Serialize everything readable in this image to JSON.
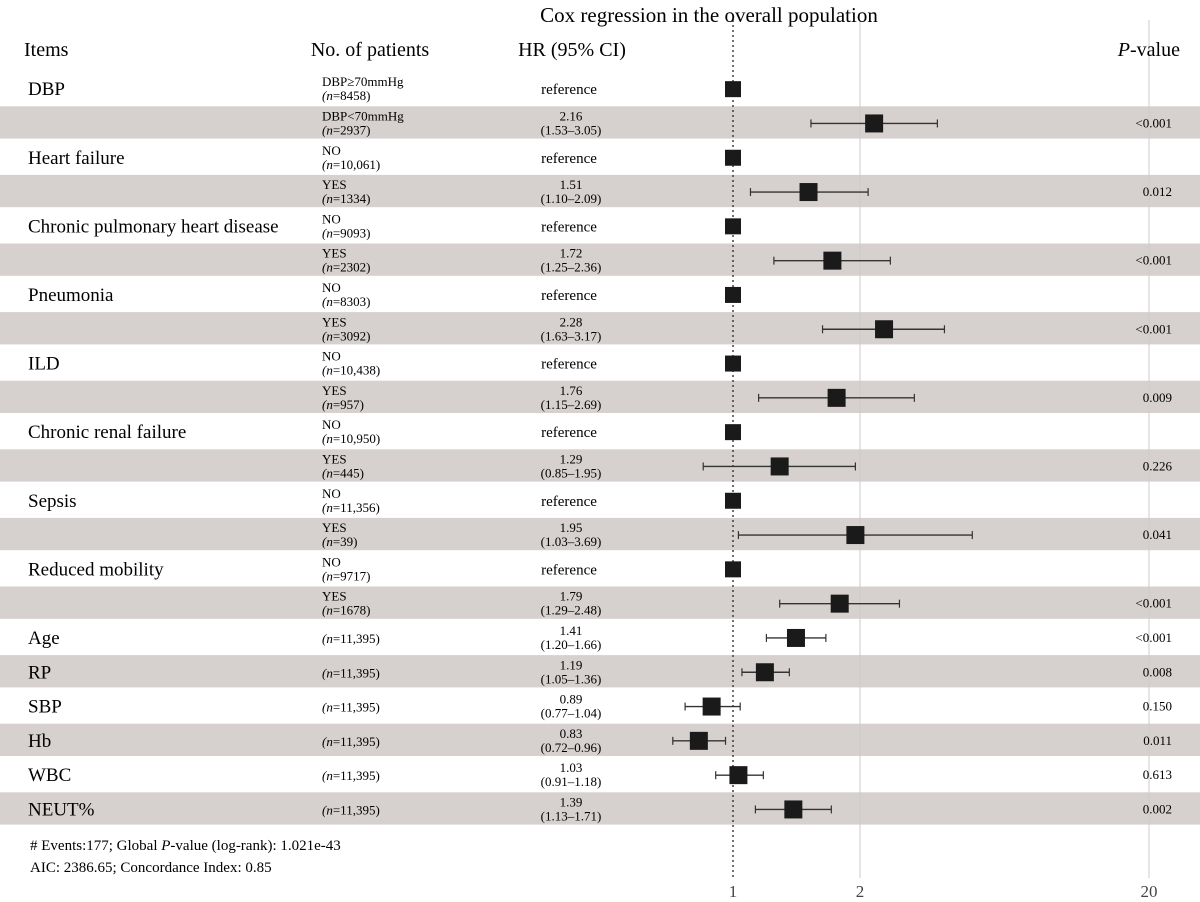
{
  "chart_data": {
    "type": "forest",
    "title": "Cox regression in the overall population",
    "columns": {
      "items": "Items",
      "patients": "No. of patients",
      "hr": "HR (95% CI)",
      "pvalue_italic": "P",
      "pvalue_rest": "-value"
    },
    "reference_label": "reference",
    "x_scale": "log",
    "x_ticks": [
      {
        "value": 1,
        "label": "1"
      },
      {
        "value": 2,
        "label": "2"
      },
      {
        "value": 20,
        "label": "20"
      }
    ],
    "rows": [
      {
        "item": "DBP",
        "group": "DBP≥70mmHg",
        "n_value": "8458",
        "hr": null,
        "hr_text": "",
        "ci_text": "",
        "lo": null,
        "hi": null,
        "p": "",
        "shade": false
      },
      {
        "item": "",
        "group": "DBP<70mmHg",
        "n_value": "2937",
        "hr": 2.16,
        "hr_text": "2.16",
        "ci_text": "(1.53–3.05)",
        "lo": 1.53,
        "hi": 3.05,
        "p": "<0.001",
        "shade": true
      },
      {
        "item": "Heart failure",
        "group": "NO",
        "n_value": "10,061",
        "hr": null,
        "hr_text": "",
        "ci_text": "",
        "lo": null,
        "hi": null,
        "p": "",
        "shade": false
      },
      {
        "item": "",
        "group": "YES",
        "n_value": "1334",
        "hr": 1.51,
        "hr_text": "1.51",
        "ci_text": "(1.10–2.09)",
        "lo": 1.1,
        "hi": 2.09,
        "p": "0.012",
        "shade": true
      },
      {
        "item": "Chronic pulmonary heart disease",
        "group": "NO",
        "n_value": "9093",
        "hr": null,
        "hr_text": "",
        "ci_text": "",
        "lo": null,
        "hi": null,
        "p": "",
        "shade": false
      },
      {
        "item": "",
        "group": "YES",
        "n_value": "2302",
        "hr": 1.72,
        "hr_text": "1.72",
        "ci_text": "(1.25–2.36)",
        "lo": 1.25,
        "hi": 2.36,
        "p": "<0.001",
        "shade": true
      },
      {
        "item": "Pneumonia",
        "group": "NO",
        "n_value": "8303",
        "hr": null,
        "hr_text": "",
        "ci_text": "",
        "lo": null,
        "hi": null,
        "p": "",
        "shade": false
      },
      {
        "item": "",
        "group": "YES",
        "n_value": "3092",
        "hr": 2.28,
        "hr_text": "2.28",
        "ci_text": "(1.63–3.17)",
        "lo": 1.63,
        "hi": 3.17,
        "p": "<0.001",
        "shade": true
      },
      {
        "item": "ILD",
        "group": "NO",
        "n_value": "10,438",
        "hr": null,
        "hr_text": "",
        "ci_text": "",
        "lo": null,
        "hi": null,
        "p": "",
        "shade": false
      },
      {
        "item": "",
        "group": "YES",
        "n_value": "957",
        "hr": 1.76,
        "hr_text": "1.76",
        "ci_text": "(1.15–2.69)",
        "lo": 1.15,
        "hi": 2.69,
        "p": "0.009",
        "shade": true
      },
      {
        "item": "Chronic renal failure",
        "group": "NO",
        "n_value": "10,950",
        "hr": null,
        "hr_text": "",
        "ci_text": "",
        "lo": null,
        "hi": null,
        "p": "",
        "shade": false
      },
      {
        "item": "",
        "group": "YES",
        "n_value": "445",
        "hr": 1.29,
        "hr_text": "1.29",
        "ci_text": "(0.85–1.95)",
        "lo": 0.85,
        "hi": 1.95,
        "p": "0.226",
        "shade": true
      },
      {
        "item": "Sepsis",
        "group": "NO",
        "n_value": "11,356",
        "hr": null,
        "hr_text": "",
        "ci_text": "",
        "lo": null,
        "hi": null,
        "p": "",
        "shade": false
      },
      {
        "item": "",
        "group": "YES",
        "n_value": "39",
        "hr": 1.95,
        "hr_text": "1.95",
        "ci_text": "(1.03–3.69)",
        "lo": 1.03,
        "hi": 3.69,
        "p": "0.041",
        "shade": true
      },
      {
        "item": "Reduced mobility",
        "group": "NO",
        "n_value": "9717",
        "hr": null,
        "hr_text": "",
        "ci_text": "",
        "lo": null,
        "hi": null,
        "p": "",
        "shade": false
      },
      {
        "item": "",
        "group": "YES",
        "n_value": "1678",
        "hr": 1.79,
        "hr_text": "1.79",
        "ci_text": "(1.29–2.48)",
        "lo": 1.29,
        "hi": 2.48,
        "p": "<0.001",
        "shade": true
      },
      {
        "item": "Age",
        "group": "",
        "n_value": "11,395",
        "hr": 1.41,
        "hr_text": "1.41",
        "ci_text": "(1.20–1.66)",
        "lo": 1.2,
        "hi": 1.66,
        "p": "<0.001",
        "shade": false
      },
      {
        "item": "RP",
        "group": "",
        "n_value": "11,395",
        "hr": 1.19,
        "hr_text": "1.19",
        "ci_text": "(1.05–1.36)",
        "lo": 1.05,
        "hi": 1.36,
        "p": "0.008",
        "shade": true
      },
      {
        "item": "SBP",
        "group": "",
        "n_value": "11,395",
        "hr": 0.89,
        "hr_text": "0.89",
        "ci_text": "(0.77–1.04)",
        "lo": 0.77,
        "hi": 1.04,
        "p": "0.150",
        "shade": false
      },
      {
        "item": "Hb",
        "group": "",
        "n_value": "11,395",
        "hr": 0.83,
        "hr_text": "0.83",
        "ci_text": "(0.72–0.96)",
        "lo": 0.72,
        "hi": 0.96,
        "p": "0.011",
        "shade": true
      },
      {
        "item": "WBC",
        "group": "",
        "n_value": "11,395",
        "hr": 1.03,
        "hr_text": "1.03",
        "ci_text": "(0.91–1.18)",
        "lo": 0.91,
        "hi": 1.18,
        "p": "0.613",
        "shade": false
      },
      {
        "item": "NEUT%",
        "group": "",
        "n_value": "11,395",
        "hr": 1.39,
        "hr_text": "1.39",
        "ci_text": "(1.13–1.71)",
        "lo": 1.13,
        "hi": 1.71,
        "p": "0.002",
        "shade": true
      }
    ],
    "footnote": {
      "line1_a": "# Events:177; Global ",
      "line1_italic": "P",
      "line1_b": "-value (log-rank): 1.021e-43",
      "line2": "AIC: 2386.65; Concordance Index: 0.85"
    },
    "colors": {
      "shade": "#d6d1ce",
      "marker": "#1a1a1a",
      "ci_line": "#333333",
      "grid": "#cccccc"
    }
  }
}
